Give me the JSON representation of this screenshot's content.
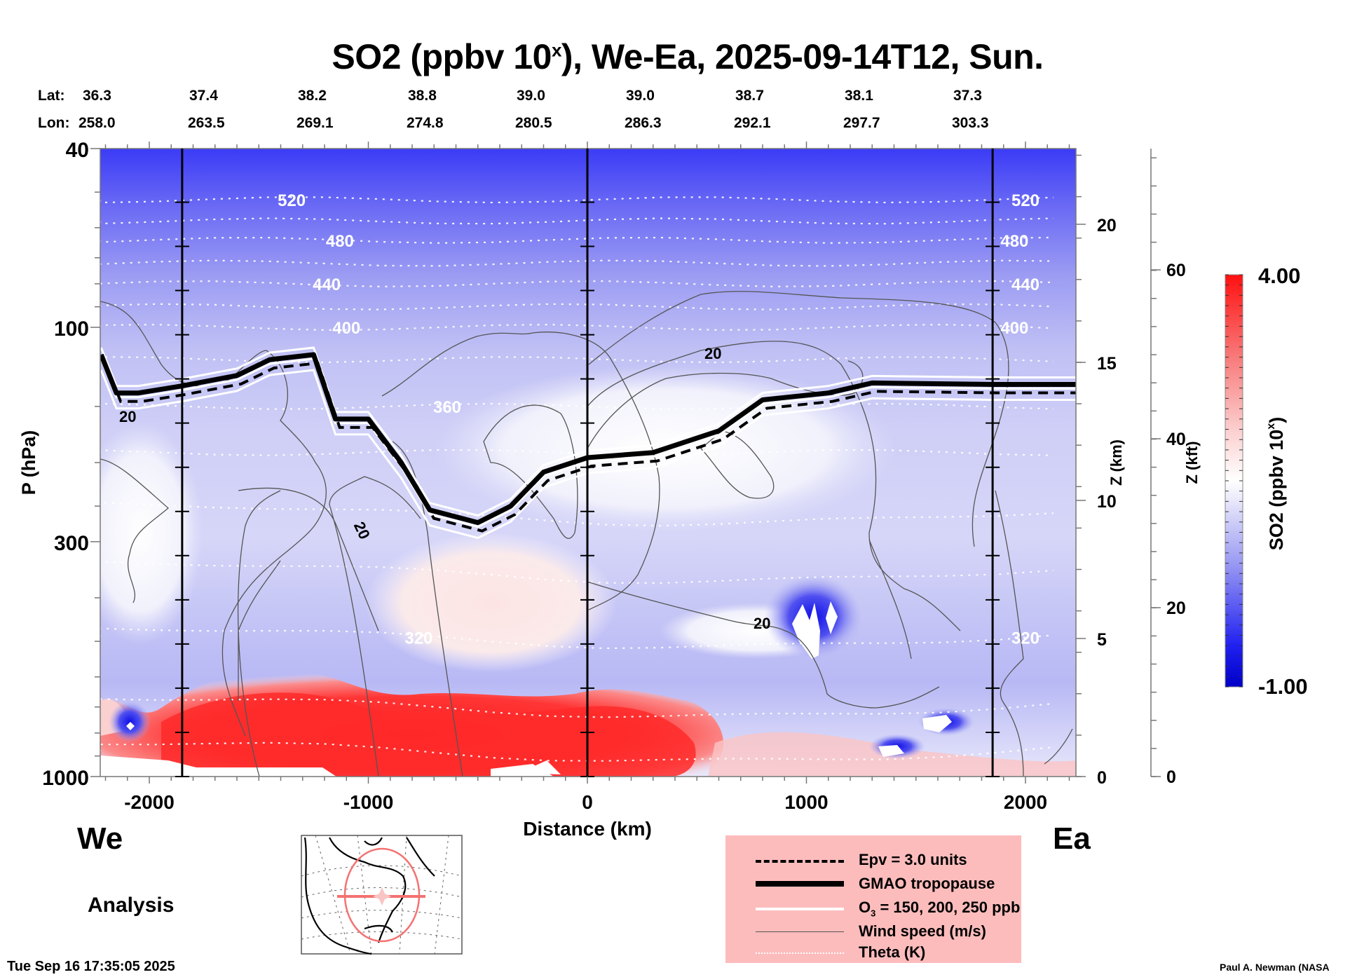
{
  "title": {
    "prefix": "SO2 (ppbv 10",
    "superscript": "x",
    "suffix": "), We-Ea, 2025-09-14T12, Sun."
  },
  "latlon": {
    "lat_label": "Lat:",
    "lon_label": "Lon:",
    "lat": [
      "36.3",
      "37.4",
      "38.2",
      "38.8",
      "39.0",
      "39.0",
      "38.7",
      "38.1",
      "37.3"
    ],
    "lon": [
      "258.0",
      "263.5",
      "269.1",
      "274.8",
      "280.5",
      "286.3",
      "292.1",
      "297.7",
      "303.3"
    ]
  },
  "direction": {
    "west": "We",
    "east": "Ea"
  },
  "analysis_label": "Analysis",
  "timestamp": "Tue Sep 16 17:35:05 2025",
  "credit": "Paul A. Newman (NASA",
  "legend": {
    "items": [
      {
        "label": "Epv = 3.0 units",
        "style": "dashed-thick"
      },
      {
        "label": "GMAO tropopause",
        "style": "solid-heavy"
      },
      {
        "label_prefix": "O",
        "label_sub": "3",
        "label_suffix": " = 150, 200, 250 ppb",
        "style": "white-solid"
      },
      {
        "label": "Wind speed (m/s)",
        "style": "thin-gray"
      },
      {
        "label": "Theta (K)",
        "style": "white-dotted"
      }
    ],
    "background": "#fdbcbc"
  },
  "colors": {
    "min_color": "#0000c8",
    "mid_color": "#ffffff",
    "max_color": "#ff0000",
    "legend_bg": "#fdbcbc"
  },
  "chart_data": {
    "type": "heatmap",
    "title": "SO2 (ppbv 10^x), We-Ea, 2025-09-14T12, Sun.",
    "xlabel": "Distance (km)",
    "ylabel": "P (hPa)",
    "y2label": "Z (km)",
    "y3label": "Z (kft)",
    "colorbar_label": "SO2 (ppbv 10x)",
    "xlim": [
      -2230,
      2230
    ],
    "ylim": [
      1000,
      40
    ],
    "y_scale": "log",
    "x_ticks": [
      -2000,
      -1000,
      0,
      1000,
      2000
    ],
    "x_tick_labels": [
      "-2000",
      "-1000",
      "0",
      "1000",
      "2000"
    ],
    "y_ticks": [
      40,
      100,
      300,
      1000
    ],
    "y_tick_labels": [
      "40",
      "100",
      "300",
      "1000"
    ],
    "z_km_ticks": [
      0,
      5,
      10,
      15,
      20
    ],
    "z_kft_ticks": [
      0,
      20,
      40,
      60
    ],
    "colorbar": {
      "min": -1.0,
      "max": 4.0,
      "min_label": "-1.00",
      "max_label": "4.00"
    },
    "vertical_markers_km": [
      -1850,
      0,
      1850
    ],
    "theta_levels_K": [
      {
        "value": 520,
        "pressure": 52,
        "label_x_km": [
          -1350,
          2000
        ]
      },
      {
        "value": 480,
        "pressure": 64,
        "label_x_km": [
          -1130,
          1950
        ]
      },
      {
        "value": 440,
        "pressure": 80,
        "label_x_km": [
          -1190,
          2000
        ]
      },
      {
        "value": 400,
        "pressure": 100,
        "label_x_km": [
          -1100,
          1950
        ]
      },
      {
        "value": 360,
        "pressure": 150,
        "label_x_km": [
          -640
        ]
      },
      {
        "value": 320,
        "pressure": 490,
        "label_x_km": [
          -770,
          2000
        ]
      }
    ],
    "tropopause_hpa": [
      {
        "x": -2220,
        "p": 115
      },
      {
        "x": -2150,
        "p": 140
      },
      {
        "x": -2050,
        "p": 140
      },
      {
        "x": -1850,
        "p": 135
      },
      {
        "x": -1600,
        "p": 128
      },
      {
        "x": -1450,
        "p": 118
      },
      {
        "x": -1250,
        "p": 115
      },
      {
        "x": -1150,
        "p": 160
      },
      {
        "x": -1000,
        "p": 160
      },
      {
        "x": -850,
        "p": 200
      },
      {
        "x": -720,
        "p": 255
      },
      {
        "x": -500,
        "p": 272
      },
      {
        "x": -350,
        "p": 250
      },
      {
        "x": -200,
        "p": 210
      },
      {
        "x": 0,
        "p": 195
      },
      {
        "x": 300,
        "p": 190
      },
      {
        "x": 600,
        "p": 170
      },
      {
        "x": 800,
        "p": 145
      },
      {
        "x": 1100,
        "p": 140
      },
      {
        "x": 1300,
        "p": 133
      },
      {
        "x": 1850,
        "p": 134
      },
      {
        "x": 2230,
        "p": 134
      }
    ],
    "wind_speed_contour_label": "20",
    "notable_features": [
      "SO2 maximum (~4.0) in boundary layer from -1800 to +500 km below ~700 hPa",
      "Minimum (-1.0) blobs near +1000 km at ~450 hPa",
      "Deep blue (low) values in stratosphere above 60 hPa"
    ]
  }
}
